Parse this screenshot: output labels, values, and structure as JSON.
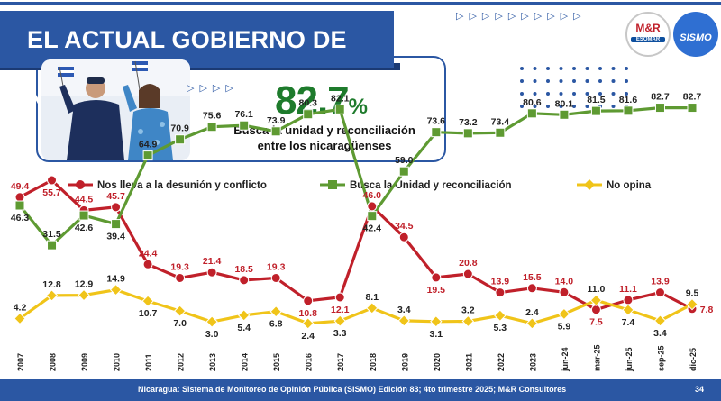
{
  "header": {
    "title": "EL ACTUAL GOBIERNO DE NICARAGUA...",
    "highlight_value": "82.7",
    "highlight_unit": "%",
    "highlight_caption_line1": "Busca la unidad y reconciliación",
    "highlight_caption_line2": "entre los nicaragüenses"
  },
  "logos": {
    "mr": "M&R",
    "esomar": "ESOMAR",
    "sismo": "SISMO"
  },
  "colors": {
    "brand_blue": "#2b57a3",
    "desunion_red": "#c0202a",
    "unidad_green": "#5e9a32",
    "noopina_yellow": "#f0c419",
    "highlight_green": "#1e7b2c"
  },
  "chart_data": {
    "type": "line",
    "categories": [
      "2007",
      "2008",
      "2009",
      "2010",
      "2011",
      "2012",
      "2013",
      "2014",
      "2015",
      "2016",
      "2017",
      "2018",
      "2019",
      "2020",
      "2021",
      "2022",
      "2023",
      "jun-24",
      "mar-25",
      "jun-25",
      "sep-25",
      "dic-25"
    ],
    "legend_placement": "top",
    "grid": false,
    "series": [
      {
        "name": "Nos lleva a la desunión y conflicto",
        "color": "#c0202a",
        "marker": "circle",
        "values": [
          49.4,
          55.7,
          44.5,
          45.7,
          24.4,
          19.3,
          21.4,
          18.5,
          19.3,
          10.8,
          12.1,
          46.0,
          34.5,
          19.5,
          20.8,
          13.9,
          15.5,
          14.0,
          7.5,
          11.1,
          13.9,
          7.8
        ]
      },
      {
        "name": "Busca la Unidad y reconciliación",
        "color": "#5e9a32",
        "marker": "square",
        "values": [
          46.3,
          31.5,
          42.6,
          39.4,
          64.9,
          70.9,
          75.6,
          76.1,
          73.9,
          80.3,
          82.1,
          42.4,
          59.0,
          73.6,
          73.2,
          73.4,
          80.6,
          80.1,
          81.5,
          81.6,
          82.7,
          82.7
        ]
      },
      {
        "name": "No opina",
        "color": "#f0c419",
        "marker": "diamond",
        "values": [
          4.2,
          12.8,
          12.9,
          14.9,
          10.7,
          7.0,
          3.0,
          5.4,
          6.8,
          2.4,
          3.3,
          8.1,
          3.4,
          3.1,
          3.2,
          5.3,
          2.4,
          5.9,
          11.0,
          7.4,
          3.4,
          9.5
        ]
      }
    ]
  },
  "footer": {
    "source": "Nicaragua: Sistema de Monitoreo de Opinión Pública (SISMO) Edición 83; 4to trimestre 2025; M&R Consultores",
    "page": "34"
  }
}
